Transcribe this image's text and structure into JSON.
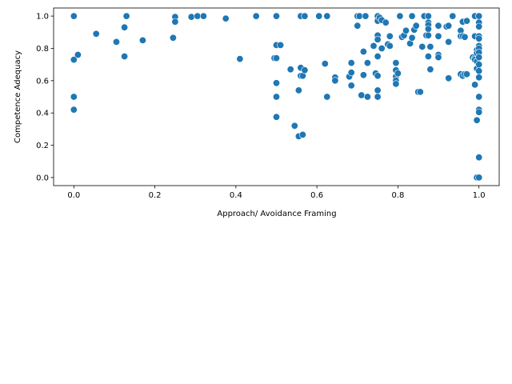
{
  "chart_data": {
    "type": "scatter",
    "xlabel": "Approach/ Avoidance Framing",
    "ylabel": "Competence Adequacy",
    "xlim": [
      -0.05,
      1.05
    ],
    "ylim": [
      -0.05,
      1.05
    ],
    "xticks": [
      0.0,
      0.2,
      0.4,
      0.6,
      0.8,
      1.0
    ],
    "yticks": [
      0.0,
      0.2,
      0.4,
      0.6,
      0.8,
      1.0
    ],
    "xtick_labels": [
      "0.0",
      "0.2",
      "0.4",
      "0.6",
      "0.8",
      "1.0"
    ],
    "ytick_labels": [
      "0.0",
      "0.2",
      "0.4",
      "0.6",
      "0.8",
      "1.0"
    ],
    "grid": false,
    "marker_color": "#1f77b4",
    "marker_edge_color": "#ffffff",
    "points": [
      [
        0.0,
        1.0
      ],
      [
        0.0,
        0.73
      ],
      [
        0.0,
        0.5
      ],
      [
        0.0,
        0.42
      ],
      [
        0.01,
        0.76
      ],
      [
        0.055,
        0.89
      ],
      [
        0.105,
        0.84
      ],
      [
        0.125,
        0.93
      ],
      [
        0.125,
        0.75
      ],
      [
        0.13,
        1.0
      ],
      [
        0.17,
        0.85
      ],
      [
        0.245,
        0.865
      ],
      [
        0.25,
        0.995
      ],
      [
        0.25,
        0.965
      ],
      [
        0.29,
        0.995
      ],
      [
        0.305,
        1.0
      ],
      [
        0.32,
        1.0
      ],
      [
        0.375,
        0.985
      ],
      [
        0.41,
        0.735
      ],
      [
        0.45,
        1.0
      ],
      [
        0.495,
        0.74
      ],
      [
        0.5,
        1.0
      ],
      [
        0.5,
        0.82
      ],
      [
        0.5,
        0.74
      ],
      [
        0.5,
        0.585
      ],
      [
        0.5,
        0.5
      ],
      [
        0.5,
        0.375
      ],
      [
        0.51,
        0.82
      ],
      [
        0.535,
        0.67
      ],
      [
        0.545,
        0.32
      ],
      [
        0.555,
        0.54
      ],
      [
        0.555,
        0.255
      ],
      [
        0.56,
        1.0
      ],
      [
        0.56,
        0.68
      ],
      [
        0.56,
        0.63
      ],
      [
        0.565,
        0.265
      ],
      [
        0.565,
        0.63
      ],
      [
        0.57,
        0.665
      ],
      [
        0.57,
        1.0
      ],
      [
        0.605,
        1.0
      ],
      [
        0.62,
        0.705
      ],
      [
        0.625,
        1.0
      ],
      [
        0.625,
        0.5
      ],
      [
        0.645,
        0.62
      ],
      [
        0.645,
        0.6
      ],
      [
        0.68,
        0.625
      ],
      [
        0.685,
        0.71
      ],
      [
        0.685,
        0.65
      ],
      [
        0.685,
        0.57
      ],
      [
        0.7,
        1.0
      ],
      [
        0.7,
        0.94
      ],
      [
        0.705,
        1.0
      ],
      [
        0.71,
        0.51
      ],
      [
        0.715,
        0.78
      ],
      [
        0.715,
        0.635
      ],
      [
        0.72,
        1.0
      ],
      [
        0.725,
        0.71
      ],
      [
        0.725,
        0.5
      ],
      [
        0.74,
        0.815
      ],
      [
        0.745,
        0.645
      ],
      [
        0.75,
        1.0
      ],
      [
        0.75,
        0.97
      ],
      [
        0.75,
        0.88
      ],
      [
        0.75,
        0.855
      ],
      [
        0.75,
        0.75
      ],
      [
        0.75,
        0.63
      ],
      [
        0.75,
        0.54
      ],
      [
        0.75,
        0.5
      ],
      [
        0.755,
        0.99
      ],
      [
        0.76,
        0.975
      ],
      [
        0.76,
        0.8
      ],
      [
        0.77,
        0.96
      ],
      [
        0.775,
        0.825
      ],
      [
        0.78,
        0.875
      ],
      [
        0.78,
        0.815
      ],
      [
        0.795,
        0.71
      ],
      [
        0.795,
        0.665
      ],
      [
        0.795,
        0.625
      ],
      [
        0.795,
        0.6
      ],
      [
        0.795,
        0.58
      ],
      [
        0.8,
        0.645
      ],
      [
        0.805,
        1.0
      ],
      [
        0.81,
        0.87
      ],
      [
        0.815,
        0.88
      ],
      [
        0.82,
        0.91
      ],
      [
        0.83,
        0.83
      ],
      [
        0.835,
        1.0
      ],
      [
        0.835,
        0.865
      ],
      [
        0.84,
        0.915
      ],
      [
        0.845,
        0.94
      ],
      [
        0.85,
        0.53
      ],
      [
        0.855,
        0.53
      ],
      [
        0.86,
        0.81
      ],
      [
        0.865,
        1.0
      ],
      [
        0.87,
        0.88
      ],
      [
        0.875,
        1.0
      ],
      [
        0.875,
        0.96
      ],
      [
        0.875,
        0.945
      ],
      [
        0.875,
        0.92
      ],
      [
        0.875,
        0.88
      ],
      [
        0.875,
        0.75
      ],
      [
        0.88,
        0.81
      ],
      [
        0.88,
        0.67
      ],
      [
        0.9,
        0.94
      ],
      [
        0.9,
        0.875
      ],
      [
        0.9,
        0.76
      ],
      [
        0.9,
        0.745
      ],
      [
        0.92,
        0.935
      ],
      [
        0.925,
        0.84
      ],
      [
        0.925,
        0.94
      ],
      [
        0.925,
        0.615
      ],
      [
        0.935,
        1.0
      ],
      [
        0.955,
        0.91
      ],
      [
        0.955,
        0.875
      ],
      [
        0.955,
        0.64
      ],
      [
        0.96,
        0.965
      ],
      [
        0.96,
        0.875
      ],
      [
        0.96,
        0.63
      ],
      [
        0.965,
        0.87
      ],
      [
        0.965,
        0.64
      ],
      [
        0.97,
        0.97
      ],
      [
        0.97,
        0.64
      ],
      [
        0.985,
        0.745
      ],
      [
        0.99,
        1.0
      ],
      [
        0.99,
        0.875
      ],
      [
        0.99,
        0.74
      ],
      [
        0.99,
        0.73
      ],
      [
        0.99,
        0.575
      ],
      [
        0.995,
        0.79
      ],
      [
        0.995,
        0.77
      ],
      [
        0.995,
        0.72
      ],
      [
        0.995,
        0.675
      ],
      [
        0.995,
        0.355
      ],
      [
        0.995,
        0.0
      ],
      [
        1.0,
        1.0
      ],
      [
        1.0,
        0.96
      ],
      [
        1.0,
        0.935
      ],
      [
        1.0,
        0.875
      ],
      [
        1.0,
        0.86
      ],
      [
        1.0,
        0.815
      ],
      [
        1.0,
        0.8
      ],
      [
        1.0,
        0.775
      ],
      [
        1.0,
        0.745
      ],
      [
        1.0,
        0.7
      ],
      [
        1.0,
        0.66
      ],
      [
        1.0,
        0.62
      ],
      [
        1.0,
        0.5
      ],
      [
        1.0,
        0.42
      ],
      [
        1.0,
        0.405
      ],
      [
        1.0,
        0.125
      ],
      [
        1.0,
        0.0
      ]
    ]
  }
}
